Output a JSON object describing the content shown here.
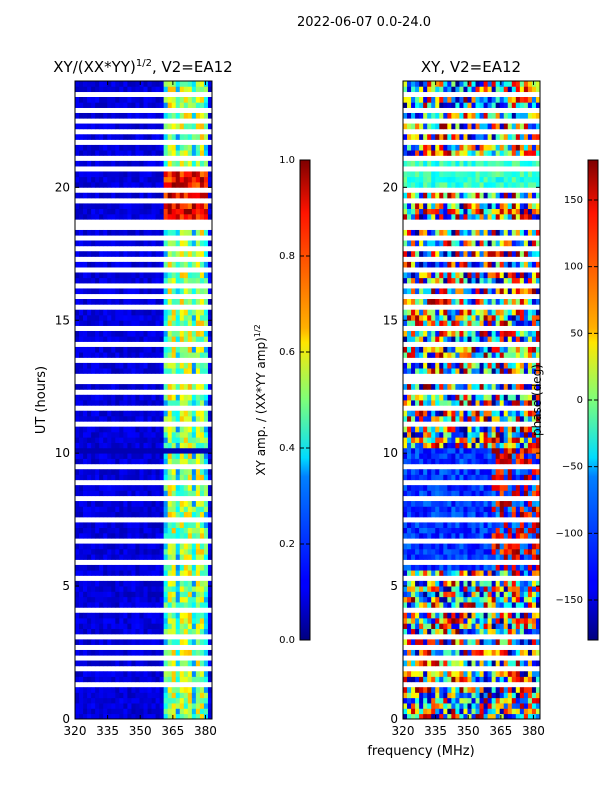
{
  "figure_title": "2022-06-07 0.0-24.0",
  "shared_xlabel": "frequency (MHz)",
  "chart_data": [
    {
      "type": "heatmap",
      "title": "XY/(XX*YY)",
      "title_exp": "1/2",
      "title_suffix": ", V2=EA12",
      "xlabel": "",
      "ylabel": "UT (hours)",
      "xlim": [
        320,
        383
      ],
      "ylim": [
        0,
        24
      ],
      "xticks": [
        320,
        335,
        350,
        365,
        380
      ],
      "yticks": [
        0,
        5,
        10,
        15,
        20
      ],
      "colorbar": {
        "label": "XY amp. / (XX*YY amp)",
        "label_exp": "1/2",
        "range": [
          0.0,
          1.0
        ],
        "ticks": [
          "0.0",
          "0.2",
          "0.4",
          "0.6",
          "0.8",
          "1.0"
        ],
        "colormap": "jet"
      }
    },
    {
      "type": "heatmap",
      "title": "XY, V2=EA12",
      "xlabel": "",
      "ylabel": "",
      "xlim": [
        320,
        383
      ],
      "ylim": [
        0,
        24
      ],
      "xticks": [
        320,
        335,
        350,
        365,
        380
      ],
      "yticks": [
        0,
        5,
        10,
        15,
        20
      ],
      "colorbar": {
        "label": "phase (deg)",
        "range": [
          -180,
          180
        ],
        "ticks": [
          "−150",
          "−100",
          "−50",
          "0",
          "50",
          "100",
          "150"
        ],
        "colormap": "jet"
      }
    }
  ]
}
